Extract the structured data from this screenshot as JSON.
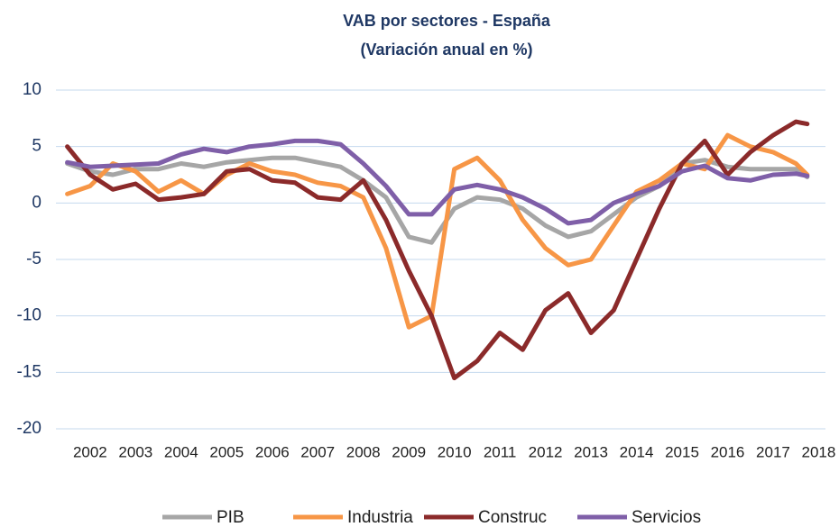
{
  "chart_data": {
    "type": "line",
    "title": "VAB por sectores - España",
    "subtitle": "(Variación anual en %)",
    "x": [
      2001.5,
      2002,
      2002.5,
      2003,
      2003.5,
      2004,
      2004.5,
      2005,
      2005.5,
      2006,
      2006.5,
      2007,
      2007.5,
      2008,
      2008.5,
      2009,
      2009.5,
      2010,
      2010.5,
      2011,
      2011.5,
      2012,
      2012.5,
      2013,
      2013.5,
      2014,
      2014.5,
      2015,
      2015.5,
      2016,
      2016.5,
      2017,
      2017.5,
      2017.75
    ],
    "series": [
      {
        "name": "PIB",
        "color": "#a6a6a6",
        "values": [
          3.5,
          2.8,
          2.5,
          3.0,
          3.0,
          3.5,
          3.2,
          3.6,
          3.8,
          4.0,
          4.0,
          3.6,
          3.2,
          2.0,
          0.5,
          -3,
          -3.5,
          -0.5,
          0.5,
          0.3,
          -0.5,
          -2,
          -3,
          -2.5,
          -1,
          0.5,
          1.5,
          3.5,
          3.8,
          3.2,
          3.0,
          3.0,
          3.0,
          2.3
        ]
      },
      {
        "name": "Industria",
        "color": "#f79646",
        "values": [
          0.8,
          1.5,
          3.5,
          2.8,
          1.0,
          2.0,
          0.8,
          2.5,
          3.5,
          2.8,
          2.5,
          1.8,
          1.5,
          0.5,
          -4,
          -11,
          -10,
          3,
          4,
          2,
          -1.5,
          -4,
          -5.5,
          -5,
          -2,
          1,
          2,
          3.5,
          3,
          6,
          5,
          4.5,
          3.5,
          2.5
        ]
      },
      {
        "name": "Construc",
        "color": "#8b2a2a",
        "values": [
          5,
          2.5,
          1.2,
          1.7,
          0.3,
          0.5,
          0.8,
          2.8,
          3.0,
          2.0,
          1.8,
          0.5,
          0.3,
          2.0,
          -1.5,
          -6,
          -10,
          -15.5,
          -14,
          -11.5,
          -13,
          -9.5,
          -8,
          -11.5,
          -9.5,
          -5,
          -0.5,
          3.5,
          5.5,
          2.5,
          4.5,
          6,
          7.2,
          7.0
        ]
      },
      {
        "name": "Servicios",
        "color": "#7f5fa8",
        "values": [
          3.6,
          3.2,
          3.3,
          3.4,
          3.5,
          4.3,
          4.8,
          4.5,
          5.0,
          5.2,
          5.5,
          5.5,
          5.2,
          3.5,
          1.5,
          -1,
          -1,
          1.2,
          1.6,
          1.2,
          0.5,
          -0.5,
          -1.8,
          -1.5,
          0,
          0.8,
          1.5,
          2.8,
          3.3,
          2.2,
          2.0,
          2.5,
          2.6,
          2.4
        ]
      }
    ],
    "xlim": [
      2001.25,
      2018.15
    ],
    "xticks": [
      2002,
      2003,
      2004,
      2005,
      2006,
      2007,
      2008,
      2009,
      2010,
      2011,
      2012,
      2013,
      2014,
      2015,
      2016,
      2017,
      2018
    ],
    "ylim": [
      -20,
      10
    ],
    "yticks": [
      -20,
      -15,
      -10,
      -5,
      0,
      5,
      10
    ],
    "grid": true
  }
}
